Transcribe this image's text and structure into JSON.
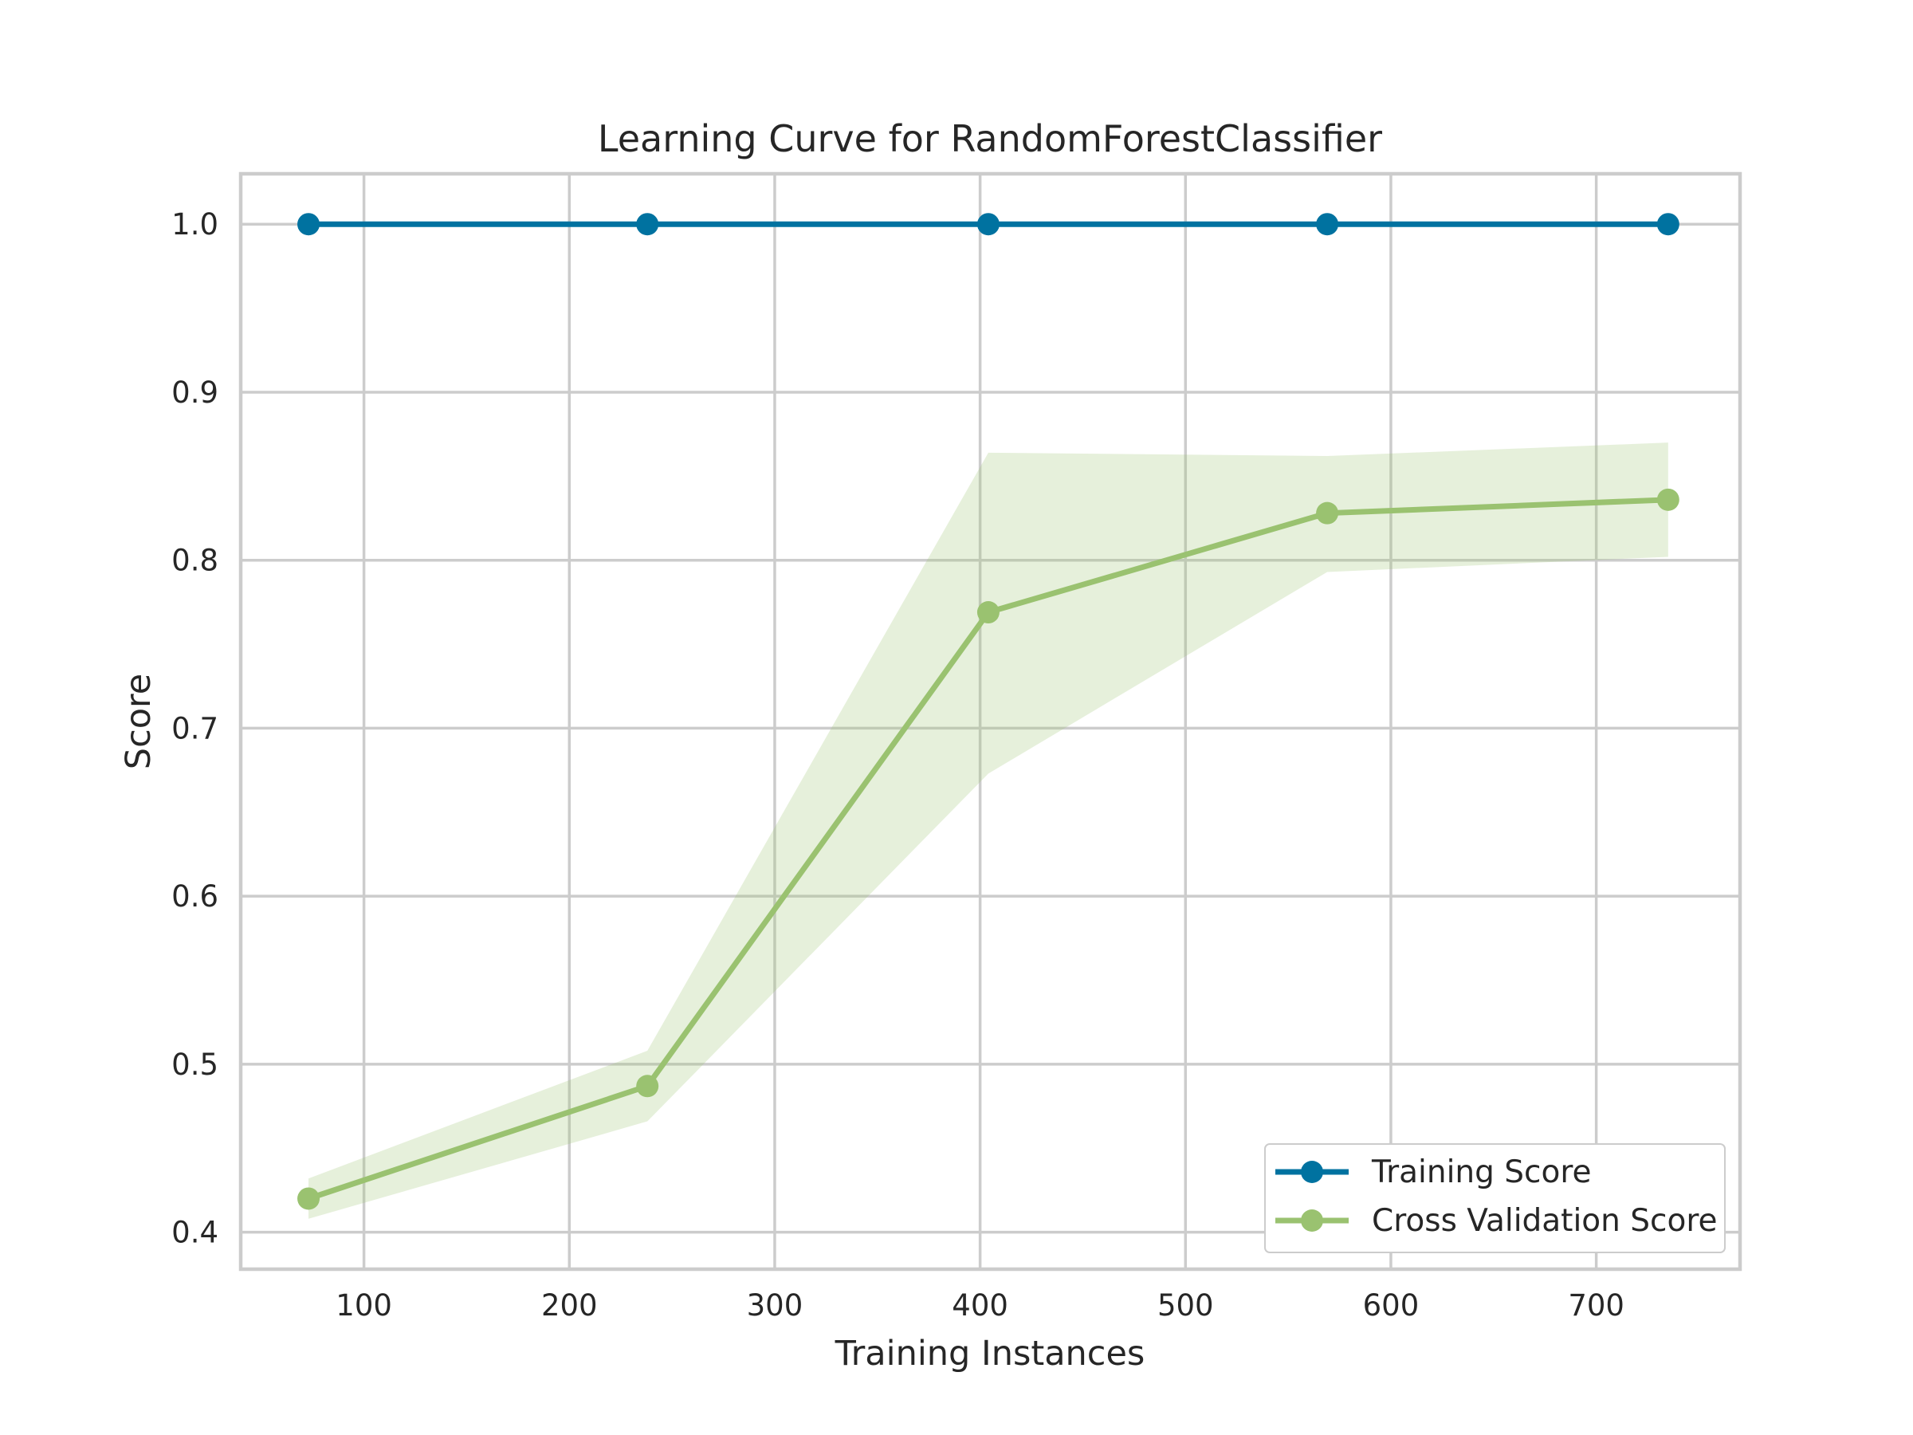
{
  "chart_data": {
    "type": "line",
    "title": "Learning Curve for RandomForestClassifier",
    "xlabel": "Training Instances",
    "ylabel": "Score",
    "xlim": [
      40,
      770
    ],
    "ylim": [
      0.378,
      1.03
    ],
    "xticks": [
      100,
      200,
      300,
      400,
      500,
      600,
      700
    ],
    "xtick_labels": [
      "100",
      "200",
      "300",
      "400",
      "500",
      "600",
      "700"
    ],
    "yticks": [
      0.4,
      0.5,
      0.6,
      0.7,
      0.8,
      0.9,
      1.0
    ],
    "ytick_labels": [
      "0.4",
      "0.5",
      "0.6",
      "0.7",
      "0.8",
      "0.9",
      "1.0"
    ],
    "grid": true,
    "legend_position": "bottom-right",
    "x": [
      73,
      238,
      404,
      569,
      735
    ],
    "series": [
      {
        "name": "Training Score",
        "color": "#0072a0",
        "values": [
          1.0,
          1.0,
          1.0,
          1.0,
          1.0
        ],
        "upper": [
          1.0,
          1.0,
          1.0,
          1.0,
          1.0
        ],
        "lower": [
          1.0,
          1.0,
          1.0,
          1.0,
          1.0
        ]
      },
      {
        "name": "Cross Validation Score",
        "color": "#9ac270",
        "band_color": "#9ac270",
        "values": [
          0.42,
          0.487,
          0.769,
          0.828,
          0.836
        ],
        "upper": [
          0.432,
          0.508,
          0.864,
          0.862,
          0.87
        ],
        "lower": [
          0.408,
          0.466,
          0.673,
          0.793,
          0.802
        ]
      }
    ]
  }
}
